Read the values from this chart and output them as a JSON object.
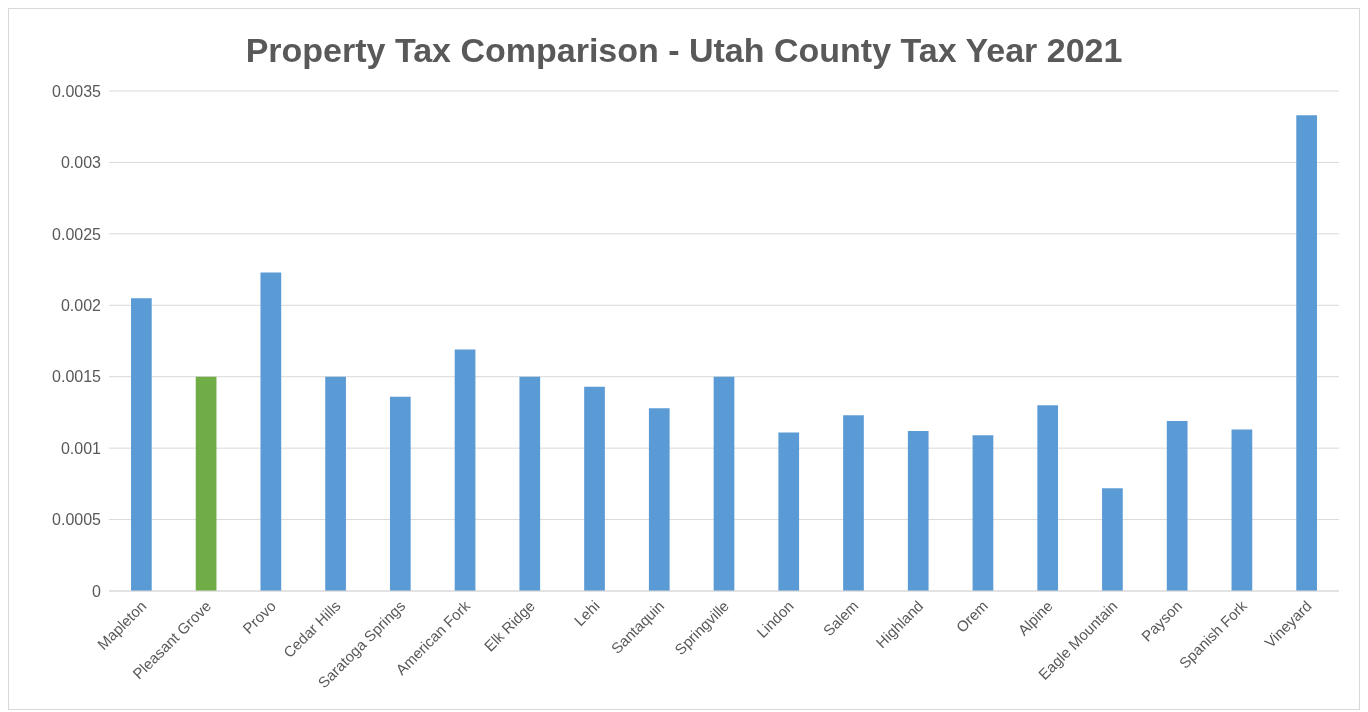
{
  "chart_data": {
    "type": "bar",
    "title": "Property Tax Comparison - Utah County Tax Year 2021",
    "categories": [
      "Mapleton",
      "Pleasant Grove",
      "Provo",
      "Cedar Hills",
      "Saratoga Springs",
      "American Fork",
      "Elk Ridge",
      "Lehi",
      "Santaquin",
      "Springville",
      "Lindon",
      "Salem",
      "Highland",
      "Orem",
      "Alpine",
      "Eagle Mountain",
      "Payson",
      "Spanish Fork",
      "Vineyard"
    ],
    "values": [
      0.00205,
      0.0015,
      0.00223,
      0.0015,
      0.00136,
      0.00169,
      0.0015,
      0.00143,
      0.00128,
      0.0015,
      0.00111,
      0.00123,
      0.00112,
      0.00109,
      0.0013,
      0.00072,
      0.00119,
      0.00113,
      0.00333
    ],
    "colors": [
      "#5b9bd5",
      "#70ad47",
      "#5b9bd5",
      "#5b9bd5",
      "#5b9bd5",
      "#5b9bd5",
      "#5b9bd5",
      "#5b9bd5",
      "#5b9bd5",
      "#5b9bd5",
      "#5b9bd5",
      "#5b9bd5",
      "#5b9bd5",
      "#5b9bd5",
      "#5b9bd5",
      "#5b9bd5",
      "#5b9bd5",
      "#5b9bd5",
      "#5b9bd5"
    ],
    "ylim": [
      0,
      0.0035
    ],
    "yticks": [
      0,
      0.0005,
      0.001,
      0.0015,
      0.002,
      0.0025,
      0.003,
      0.0035
    ],
    "grid": "y"
  }
}
